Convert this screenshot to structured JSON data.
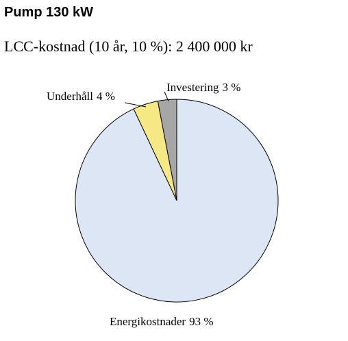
{
  "chart_data": {
    "type": "pie",
    "title": "Pump 130 kW",
    "subtitle": "LCC-kostnad (10 år, 10 %): 2 400 000 kr",
    "categories": [
      "Investering",
      "Underhåll",
      "Energikostnader"
    ],
    "values": [
      3,
      4,
      93
    ],
    "value_labels": [
      "3 %",
      "4 %",
      "93 %"
    ],
    "colors": [
      "#a6a6a6",
      "#f6e884",
      "#dce6f4"
    ]
  }
}
